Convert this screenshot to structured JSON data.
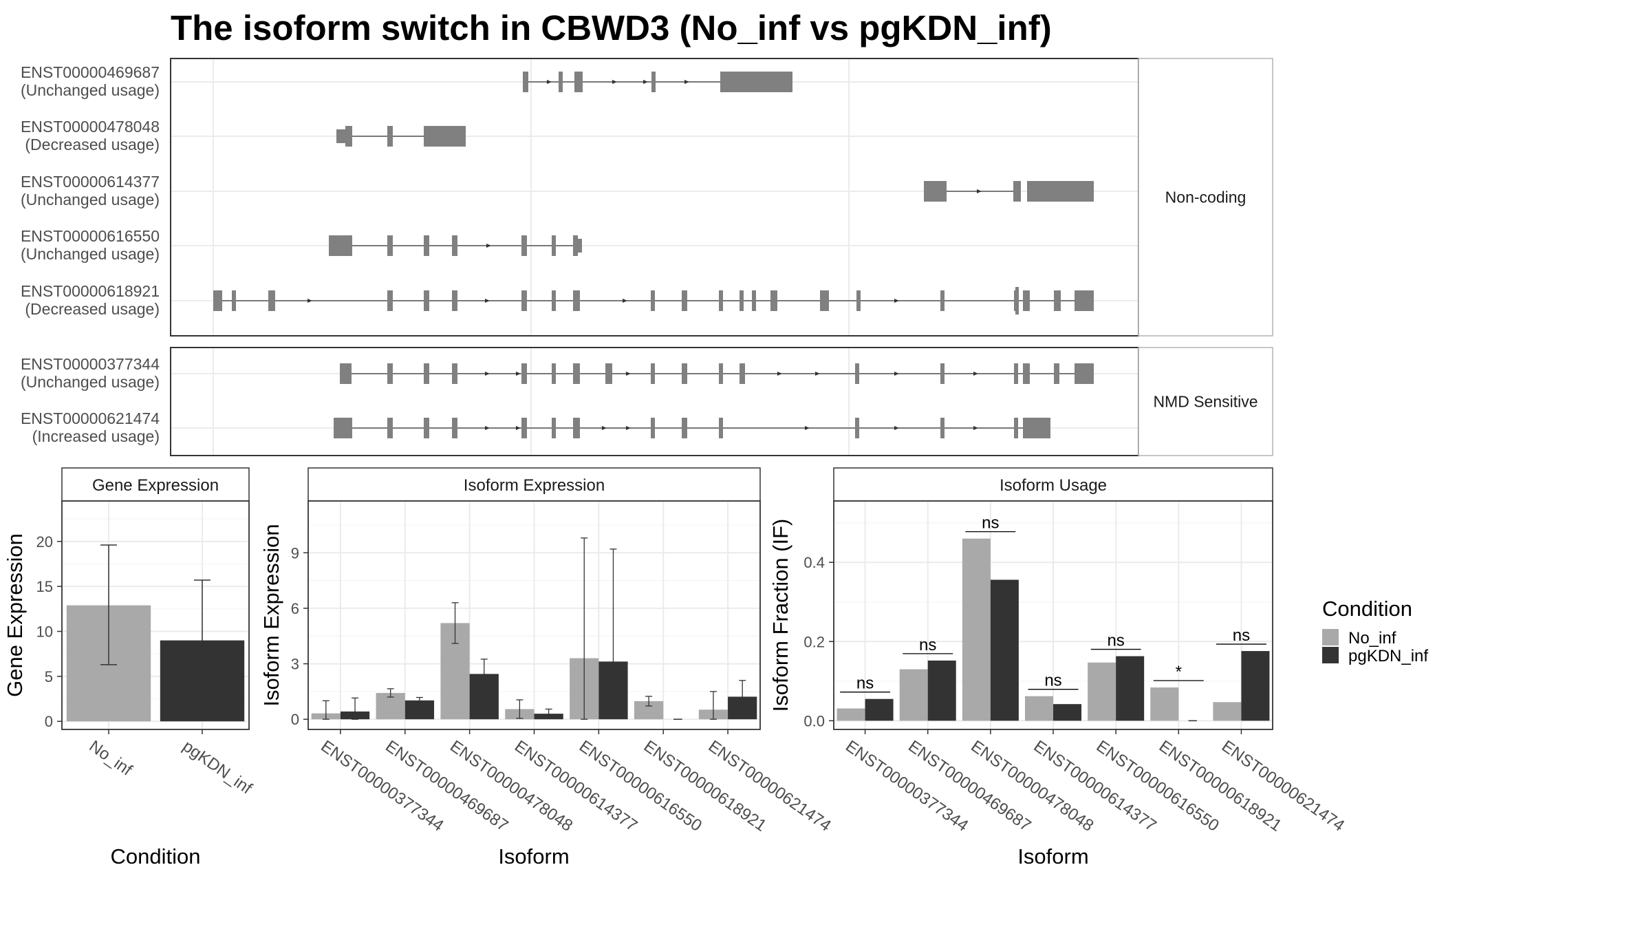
{
  "title": "The isoform switch in CBWD3 (No_inf vs pgKDN_inf)",
  "colors": {
    "no_inf": "#A9A9A9",
    "pgkdn_inf": "#333333",
    "exon": "#808080",
    "grid": "#EBEBEB",
    "frame": "#333333",
    "strip_bg": "#FFFFFF",
    "text": "#000000",
    "tick_text": "#4D4D4D"
  },
  "transcript_panel": {
    "groups": [
      {
        "label": "Non-coding",
        "transcripts": [
          {
            "id": "ENST00000469687",
            "usage": "(Unchanged usage)"
          },
          {
            "id": "ENST00000478048",
            "usage": "(Decreased usage)"
          },
          {
            "id": "ENST00000614377",
            "usage": "(Unchanged usage)"
          },
          {
            "id": "ENST00000616550",
            "usage": "(Unchanged usage)"
          },
          {
            "id": "ENST00000618921",
            "usage": "(Decreased usage)"
          }
        ]
      },
      {
        "label": "NMD Sensitive",
        "transcripts": [
          {
            "id": "ENST00000377344",
            "usage": "(Unchanged usage)"
          },
          {
            "id": "ENST00000621474",
            "usage": "(Increased usage)"
          }
        ]
      }
    ]
  },
  "legend": {
    "title": "Condition",
    "items": [
      {
        "label": "No_inf",
        "color": "#A9A9A9"
      },
      {
        "label": "pgKDN_inf",
        "color": "#333333"
      }
    ]
  },
  "chart_data": [
    {
      "type": "bar",
      "panel_title": "Gene Expression",
      "xlabel": "Condition",
      "ylabel": "Gene Expression",
      "categories": [
        "No_inf",
        "pgKDN_inf"
      ],
      "values": [
        12.9,
        9.0
      ],
      "error_low": [
        6.3,
        2.3
      ],
      "error_high": [
        19.6,
        15.7
      ],
      "ylim": [
        -0.9,
        24.5
      ],
      "yticks": [
        0,
        5,
        10,
        15,
        20
      ]
    },
    {
      "type": "bar",
      "panel_title": "Isoform Expression",
      "xlabel": "Isoform",
      "ylabel": "Isoform Expression",
      "categories": [
        "ENST00000377344",
        "ENST00000469687",
        "ENST00000478048",
        "ENST00000614377",
        "ENST00000616550",
        "ENST00000618921",
        "ENST00000621474"
      ],
      "series": [
        {
          "name": "No_inf",
          "values": [
            0.32,
            1.42,
            5.2,
            0.55,
            3.3,
            0.98,
            0.52
          ],
          "error_low": [
            0.0,
            1.2,
            4.1,
            0.05,
            0.0,
            0.72,
            0.0
          ],
          "error_high": [
            1.0,
            1.65,
            6.3,
            1.05,
            9.8,
            1.24,
            1.5
          ]
        },
        {
          "name": "pgKDN_inf",
          "values": [
            0.42,
            1.02,
            2.45,
            0.3,
            3.12,
            0.0,
            1.22
          ],
          "error_low": [
            0.0,
            0.88,
            1.65,
            0.05,
            0.05,
            0.0,
            0.3
          ],
          "error_high": [
            1.15,
            1.18,
            3.25,
            0.55,
            9.2,
            0.0,
            2.1
          ]
        }
      ],
      "ylim": [
        -0.55,
        11.8
      ],
      "yticks": [
        0,
        3,
        6,
        9
      ]
    },
    {
      "type": "bar",
      "panel_title": "Isoform Usage",
      "xlabel": "Isoform",
      "ylabel": "Isoform Fraction (IF)",
      "categories": [
        "ENST00000377344",
        "ENST00000469687",
        "ENST00000478048",
        "ENST00000614377",
        "ENST00000616550",
        "ENST00000618921",
        "ENST00000621474"
      ],
      "series": [
        {
          "name": "No_inf",
          "values": [
            0.031,
            0.13,
            0.46,
            0.062,
            0.147,
            0.084,
            0.047
          ]
        },
        {
          "name": "pgKDN_inf",
          "values": [
            0.055,
            0.152,
            0.356,
            0.042,
            0.163,
            0.0,
            0.176
          ]
        }
      ],
      "significance": [
        "ns",
        "ns",
        "ns",
        "ns",
        "ns",
        "*",
        "ns"
      ],
      "ylim": [
        -0.022,
        0.555
      ],
      "yticks": [
        0.0,
        0.2,
        0.4
      ],
      "ytick_labels": [
        "0.0",
        "0.2",
        "0.4"
      ]
    }
  ]
}
